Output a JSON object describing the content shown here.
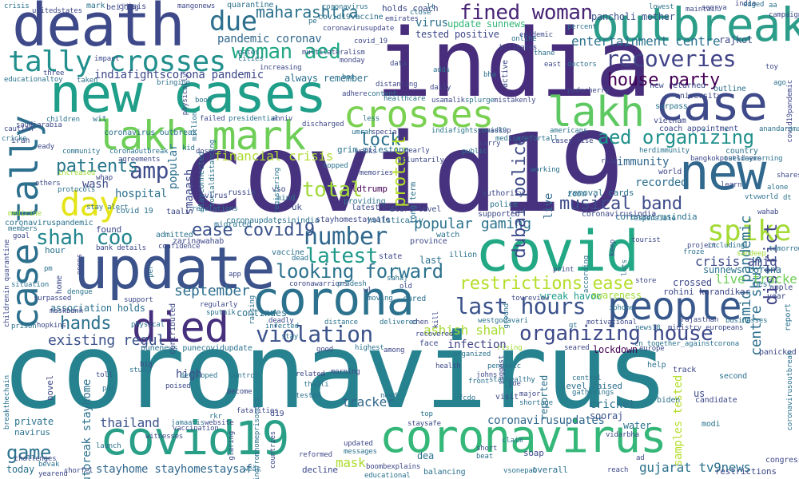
{
  "palette": {
    "purple_dark": "#440154",
    "indigo": "#3b3f8c",
    "blue": "#31688e",
    "teal_blue": "#26828e",
    "teal": "#1f9e89",
    "green": "#35b779",
    "lime": "#6ece58",
    "yellow_green": "#b5de2b",
    "yellow": "#fde725",
    "grey_teal": "#2d708e"
  },
  "words": [
    {
      "text": "coronavirus"
    },
    {
      "text": "covid19"
    },
    {
      "text": "india"
    },
    {
      "text": "death"
    },
    {
      "text": "new cases"
    },
    {
      "text": "update"
    },
    {
      "text": "covid"
    },
    {
      "text": "corona"
    },
    {
      "text": "coronavirus"
    },
    {
      "text": "covid19"
    },
    {
      "text": "outbreak"
    },
    {
      "text": "case"
    },
    {
      "text": "new"
    },
    {
      "text": "crosses"
    },
    {
      "text": "lakh"
    },
    {
      "text": "lakh mark"
    },
    {
      "text": "tally crosses"
    },
    {
      "text": "people"
    },
    {
      "text": "died"
    },
    {
      "text": "case tally"
    },
    {
      "text": "day"
    },
    {
      "text": "shah coo"
    },
    {
      "text": "fined woman"
    },
    {
      "text": "woman aed"
    },
    {
      "text": "recoveries"
    },
    {
      "text": "due"
    },
    {
      "text": "maharashtra"
    },
    {
      "text": "house party"
    },
    {
      "text": "aed organizing"
    },
    {
      "text": "musical band"
    },
    {
      "text": "spike"
    },
    {
      "text": "number"
    },
    {
      "text": "latest"
    },
    {
      "text": "looking forward"
    },
    {
      "text": "last hours"
    },
    {
      "text": "organizing house"
    },
    {
      "text": "violation"
    },
    {
      "text": "restrictions ease"
    },
    {
      "text": "hands"
    },
    {
      "text": "existing regul"
    },
    {
      "text": "total"
    },
    {
      "text": "amp"
    },
    {
      "text": "patients"
    },
    {
      "text": "lock"
    },
    {
      "text": "ease covid19"
    },
    {
      "text": "september"
    },
    {
      "text": "game"
    },
    {
      "text": "thailand"
    },
    {
      "text": "stayhome stayhomestaysaf"
    },
    {
      "text": "gujarat tv9news"
    },
    {
      "text": "coronavirusupdates"
    },
    {
      "text": "ashish shah"
    },
    {
      "text": "popular gaming"
    },
    {
      "text": "tracker"
    },
    {
      "text": "mask"
    },
    {
      "text": "protect"
    },
    {
      "text": "dubai police"
    },
    {
      "text": "district"
    },
    {
      "text": "amid pandemic"
    },
    {
      "text": "centre shuts"
    },
    {
      "text": "crisis amid"
    },
    {
      "text": "live tracker"
    },
    {
      "text": "entertainment centre"
    },
    {
      "text": "pandemic coronav"
    },
    {
      "text": "indiafightscorona pandemic"
    },
    {
      "text": "financial crisis"
    },
    {
      "text": "hospital"
    },
    {
      "text": "immunity"
    },
    {
      "text": "recorded"
    },
    {
      "text": "smaaash"
    },
    {
      "text": "popular"
    },
    {
      "text": "live"
    },
    {
      "text": "outbreak stayhome"
    },
    {
      "text": "infection"
    },
    {
      "text": "high"
    },
    {
      "text": "cricket"
    },
    {
      "text": "sooraj"
    },
    {
      "text": "wash"
    },
    {
      "text": "samples tested"
    },
    {
      "text": "lockdown"
    },
    {
      "text": "continues"
    },
    {
      "text": "last"
    },
    {
      "text": "crossed"
    },
    {
      "text": "sunnews corona"
    },
    {
      "text": "virus"
    },
    {
      "text": "tested positive"
    },
    {
      "text": "update sunnews"
    },
    {
      "text": "rajkot"
    },
    {
      "text": "pancholi mother"
    },
    {
      "text": "quarantine"
    },
    {
      "text": "beijing"
    },
    {
      "text": "mark"
    },
    {
      "text": "holds coach"
    },
    {
      "text": "awareness"
    },
    {
      "text": "association holds"
    },
    {
      "text": "wreak havoc"
    },
    {
      "text": "water"
    },
    {
      "text": "us"
    },
    {
      "text": "ldtrump"
    },
    {
      "text": "navirus"
    },
    {
      "text": "today"
    },
    {
      "text": "private"
    },
    {
      "text": "d19"
    },
    {
      "text": "coronavirus outbreak"
    },
    {
      "text": "crisis"
    },
    {
      "text": "grim milestone"
    },
    {
      "text": "coronavirusindia"
    },
    {
      "text": "rohini karandikar"
    },
    {
      "text": "september"
    },
    {
      "text": "covid19vaccine"
    },
    {
      "text": "tally crosses"
    },
    {
      "text": "punenews punecovidupdate"
    },
    {
      "text": "iran"
    },
    {
      "text": "wit"
    },
    {
      "text": "zarinawahab"
    },
    {
      "text": "stayconnected"
    },
    {
      "text": "sunnews"
    },
    {
      "text": "uk"
    },
    {
      "text": "hour"
    },
    {
      "text": "found"
    },
    {
      "text": "vaccine"
    },
    {
      "text": "novel"
    },
    {
      "text": "reported"
    },
    {
      "text": "soap"
    },
    {
      "text": "removal cards"
    },
    {
      "text": "restrictions"
    },
    {
      "text": "overall"
    },
    {
      "text": "decline"
    },
    {
      "text": "balancing"
    },
    {
      "text": "canvas"
    },
    {
      "text": "congress"
    },
    {
      "text": "help"
    },
    {
      "text": "track"
    },
    {
      "text": "second"
    },
    {
      "text": "candidate"
    },
    {
      "text": "biden"
    },
    {
      "text": "apple"
    },
    {
      "text": "best"
    },
    {
      "text": "year"
    },
    {
      "text": "report"
    },
    {
      "text": "panicked"
    },
    {
      "text": "modi"
    },
    {
      "text": "new returned"
    },
    {
      "text": "outline"
    },
    {
      "text": "university"
    },
    {
      "text": "surpass"
    },
    {
      "text": "coach appointment"
    },
    {
      "text": "country"
    },
    {
      "text": "vietnam"
    },
    {
      "text": "herdimmunity"
    },
    {
      "text": "bangkokpostliners"
    },
    {
      "text": "tuesdaymorning"
    },
    {
      "text": "world"
    },
    {
      "text": "zoom"
    },
    {
      "text": "authority"
    },
    {
      "text": "police"
    },
    {
      "text": "supported"
    },
    {
      "text": "long term"
    },
    {
      "text": "alert level"
    },
    {
      "text": "cured"
    },
    {
      "text": "face"
    },
    {
      "text": "watch"
    },
    {
      "text": "province"
    },
    {
      "text": "illion"
    },
    {
      "text": "state"
    },
    {
      "text": "admitted"
    },
    {
      "text": "taali"
    },
    {
      "text": "covid 19"
    },
    {
      "text": "avirus"
    },
    {
      "text": "migrated"
    },
    {
      "text": "russia"
    },
    {
      "text": "coronaupdatesinindia"
    },
    {
      "text": "stayhomestaysafe"
    },
    {
      "text": "holistically"
    },
    {
      "text": "latestnews"
    },
    {
      "text": "providing"
    },
    {
      "text": "vso"
    },
    {
      "text": "mind"
    },
    {
      "text": "coronavirusindia"
    },
    {
      "text": "medicine"
    },
    {
      "text": "members"
    },
    {
      "text": "goal"
    },
    {
      "text": "coronaviruspandemic"
    },
    {
      "text": "confidence"
    },
    {
      "text": "regulations"
    },
    {
      "text": "bank details"
    },
    {
      "text": "dead"
    },
    {
      "text": "support"
    },
    {
      "text": "dengue"
    },
    {
      "text": "home"
    },
    {
      "text": "situation"
    },
    {
      "text": "maskbank"
    },
    {
      "text": "prison"
    },
    {
      "text": "hopkins"
    },
    {
      "text": "physical"
    },
    {
      "text": "regularly"
    },
    {
      "text": "sputnik"
    },
    {
      "text": "contributed"
    },
    {
      "text": "infected"
    },
    {
      "text": "good"
    },
    {
      "text": "distance"
    },
    {
      "text": "recovered"
    },
    {
      "text": "highest"
    },
    {
      "text": "among"
    },
    {
      "text": "delivered"
    },
    {
      "text": "chen"
    },
    {
      "text": "westgodavari"
    },
    {
      "text": "motivational"
    },
    {
      "text": "news18"
    },
    {
      "text": "rajasthan"
    },
    {
      "text": "businesses"
    },
    {
      "text": "ministry europeans"
    },
    {
      "text": "iphone"
    },
    {
      "text": "tovreview"
    },
    {
      "text": "cn_together_againstcorona"
    },
    {
      "text": "europe"
    },
    {
      "text": "gt"
    },
    {
      "text": "seared"
    },
    {
      "text": "rising"
    },
    {
      "text": "pendemic"
    },
    {
      "text": "johns"
    },
    {
      "text": "central"
    },
    {
      "text": "joe"
    },
    {
      "text": "level raised"
    },
    {
      "text": "major"
    },
    {
      "text": "shortage"
    },
    {
      "text": "visit"
    },
    {
      "text": "gatherings"
    },
    {
      "text": "vidarbha"
    },
    {
      "text": "claim"
    },
    {
      "text": "short"
    },
    {
      "text": "beat"
    },
    {
      "text": "ad"
    },
    {
      "text": "vsonepal"
    },
    {
      "text": "reach"
    },
    {
      "text": "tested"
    },
    {
      "text": "morning"
    },
    {
      "text": "need"
    },
    {
      "text": "fatalities"
    },
    {
      "text": "rkr"
    },
    {
      "text": "website"
    },
    {
      "text": "jamaatis"
    },
    {
      "text": "vaccination"
    },
    {
      "text": "developed"
    },
    {
      "text": "poised"
    },
    {
      "text": "control"
    },
    {
      "text": "become"
    },
    {
      "text": "prisoners"
    },
    {
      "text": "related"
    },
    {
      "text": "thaali"
    },
    {
      "text": "updated"
    },
    {
      "text": "messages"
    },
    {
      "text": "reformed"
    },
    {
      "text": "dea"
    },
    {
      "text": "boombexplains"
    },
    {
      "text": "educational"
    },
    {
      "text": "staysafe"
    },
    {
      "text": "top"
    },
    {
      "text": "big"
    },
    {
      "text": "study"
    },
    {
      "text": "toll"
    },
    {
      "text": "launch"
    },
    {
      "text": "challenges"
    },
    {
      "text": "breakthechain"
    },
    {
      "text": "witnesses"
    },
    {
      "text": "pur"
    },
    {
      "text": "glaring"
    },
    {
      "text": "wear"
    },
    {
      "text": "countries"
    },
    {
      "text": "morningfromhome"
    },
    {
      "text": "chorfel"
    },
    {
      "text": "bevak"
    },
    {
      "text": "yearend"
    },
    {
      "text": "aa"
    },
    {
      "text": "india"
    },
    {
      "text": "coronavirusoutbreak"
    },
    {
      "text": "unitedstates"
    },
    {
      "text": "crisis"
    },
    {
      "text": "mangonews"
    },
    {
      "text": "coronavirus"
    },
    {
      "text": "emirates"
    },
    {
      "text": "pe"
    },
    {
      "text": "covid_19"
    },
    {
      "text": "gates"
    },
    {
      "text": "multilateralism"
    },
    {
      "text": "cities"
    },
    {
      "text": "increasing"
    },
    {
      "text": "always remember"
    },
    {
      "text": "monday"
    },
    {
      "text": "box"
    },
    {
      "text": "adhere"
    },
    {
      "text": "content"
    },
    {
      "text": "usamalik"
    },
    {
      "text": "healthcare"
    },
    {
      "text": "distancing"
    },
    {
      "text": "online"
    },
    {
      "text": "billgates"
    },
    {
      "text": "thane"
    },
    {
      "text": "east"
    },
    {
      "text": "doctors"
    },
    {
      "text": "puducherry"
    },
    {
      "text": "splurge"
    },
    {
      "text": "mistakenly"
    },
    {
      "text": "americans"
    },
    {
      "text": "cases rise"
    },
    {
      "text": "medicarefortall"
    },
    {
      "text": "carry"
    },
    {
      "text": "indiafightscovid19"
    },
    {
      "text": "maskup"
    },
    {
      "text": "umrah"
    },
    {
      "text": "special"
    },
    {
      "text": "less"
    },
    {
      "text": "nearly"
    },
    {
      "text": "public"
    },
    {
      "text": "voluntarily"
    },
    {
      "text": "registering"
    },
    {
      "text": "memories"
    },
    {
      "text": "topped"
    },
    {
      "text": "weeks"
    },
    {
      "text": "community"
    },
    {
      "text": "eady"
    },
    {
      "text": "cricke"
    },
    {
      "text": "saudiarabia"
    },
    {
      "text": "children"
    },
    {
      "text": "caution"
    },
    {
      "text": "taken"
    },
    {
      "text": "three"
    },
    {
      "text": "educationaltoy"
    },
    {
      "text": "impact"
    },
    {
      "text": "bringing"
    },
    {
      "text": "physically"
    },
    {
      "text": "book"
    },
    {
      "text": "failed"
    },
    {
      "text": "presidential"
    },
    {
      "text": "anniv"
    },
    {
      "text": "million"
    },
    {
      "text": "discharged"
    },
    {
      "text": "kid"
    },
    {
      "text": "doses"
    },
    {
      "text": "socialdistancing"
    },
    {
      "text": "agreements"
    },
    {
      "text": "coronaoutbreak"
    },
    {
      "text": "increased"
    },
    {
      "text": "others"
    },
    {
      "text": "protocols"
    },
    {
      "text": "whap"
    },
    {
      "text": "stay alert"
    },
    {
      "text": "childrenin quarantine"
    },
    {
      "text": "working"
    },
    {
      "text": "rise"
    },
    {
      "text": "including"
    },
    {
      "text": "project"
    },
    {
      "text": "froze"
    },
    {
      "text": "tourist"
    },
    {
      "text": "responsible"
    },
    {
      "text": "keep"
    },
    {
      "text": "lots"
    },
    {
      "text": "sandeep"
    },
    {
      "text": "tomorrow"
    },
    {
      "text": "wahab"
    },
    {
      "text": "vtvworld"
    },
    {
      "text": "shares"
    },
    {
      "text": "alone"
    },
    {
      "text": "learn"
    },
    {
      "text": "dt"
    },
    {
      "text": "covid19pandemic"
    },
    {
      "text": "anandaraman"
    },
    {
      "text": "toy"
    },
    {
      "text": "ago"
    },
    {
      "text": "campaign"
    },
    {
      "text": "edged"
    },
    {
      "text": "maintain"
    },
    {
      "text": "lowest"
    },
    {
      "text": "soorya"
    },
    {
      "text": "percent"
    },
    {
      "text": "epidemic"
    },
    {
      "text": "lt"
    },
    {
      "text": "coronavirusupdate"
    },
    {
      "text": "close"
    },
    {
      "text": "data"
    },
    {
      "text": "adds"
    },
    {
      "text": "daily"
    },
    {
      "text": "bha"
    },
    {
      "text": "active"
    },
    {
      "text": "fcdo"
    },
    {
      "text": "print"
    },
    {
      "text": "according"
    },
    {
      "text": "store"
    },
    {
      "text": "organized"
    },
    {
      "text": "old"
    },
    {
      "text": "sahaj"
    },
    {
      "text": "kill"
    },
    {
      "text": "stayhealthy"
    },
    {
      "text": "suggest"
    },
    {
      "text": "ground"
    },
    {
      "text": "health"
    },
    {
      "text": "front"
    },
    {
      "text": "app"
    },
    {
      "text": "per"
    },
    {
      "text": "opens"
    },
    {
      "text": "stay"
    },
    {
      "text": "deadly"
    },
    {
      "text": "raising"
    },
    {
      "text": "coronawarriors"
    },
    {
      "text": "pradesh"
    },
    {
      "text": "wl"
    },
    {
      "text": "moving"
    },
    {
      "text": "surpassed"
    },
    {
      "text": "pm"
    }
  ]
}
